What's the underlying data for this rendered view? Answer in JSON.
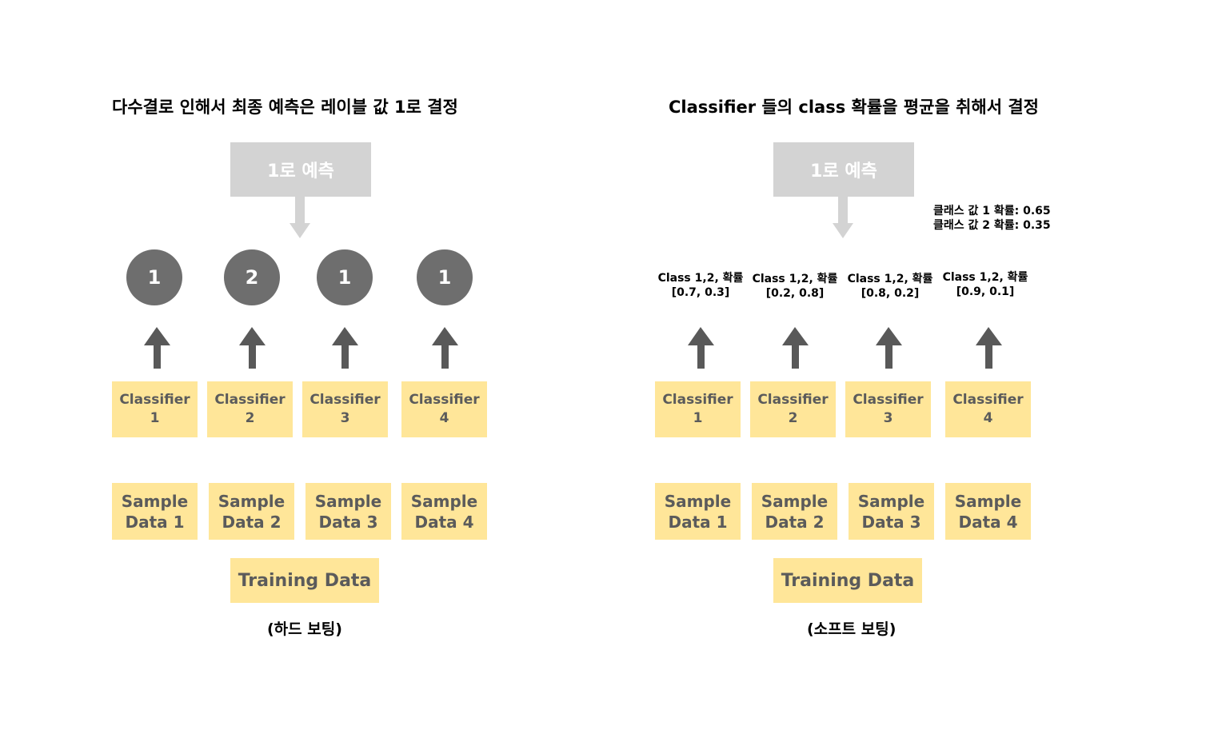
{
  "hard": {
    "title": "다수결로 인해서 최종 예측은 레이블 값 1로 결정",
    "prediction": "1로 예측",
    "votes": [
      "1",
      "2",
      "1",
      "1"
    ],
    "classifiers": [
      {
        "name": "Classifier",
        "num": "1"
      },
      {
        "name": "Classifier",
        "num": "2"
      },
      {
        "name": "Classifier",
        "num": "3"
      },
      {
        "name": "Classifier",
        "num": "4"
      }
    ],
    "samples": [
      {
        "line1": "Sample",
        "line2": "Data 1"
      },
      {
        "line1": "Sample",
        "line2": "Data 2"
      },
      {
        "line1": "Sample",
        "line2": "Data 3"
      },
      {
        "line1": "Sample",
        "line2": "Data 4"
      }
    ],
    "training": "Training Data",
    "caption": "(하드 보팅)"
  },
  "soft": {
    "title": "Classifier 들의 class 확률을 평균을 취해서 결정",
    "prediction": "1로 예측",
    "average": [
      "클래스 값 1 확률: 0.65",
      "클래스 값 2 확률: 0.35"
    ],
    "probs": [
      {
        "label": "Class 1,2, 확률",
        "values": "[0.7, 0.3]"
      },
      {
        "label": "Class 1,2, 확률",
        "values": "[0.2, 0.8]"
      },
      {
        "label": "Class 1,2, 확률",
        "values": "[0.8, 0.2]"
      },
      {
        "label": "Class 1,2, 확률",
        "values": "[0.9, 0.1]"
      }
    ],
    "classifiers": [
      {
        "name": "Classifier",
        "num": "1"
      },
      {
        "name": "Classifier",
        "num": "2"
      },
      {
        "name": "Classifier",
        "num": "3"
      },
      {
        "name": "Classifier",
        "num": "4"
      }
    ],
    "samples": [
      {
        "line1": "Sample",
        "line2": "Data 1"
      },
      {
        "line1": "Sample",
        "line2": "Data 2"
      },
      {
        "line1": "Sample",
        "line2": "Data 3"
      },
      {
        "line1": "Sample",
        "line2": "Data 4"
      }
    ],
    "training": "Training Data",
    "caption": "(소프트 보팅)"
  },
  "colors": {
    "box_fill": "#ffe699",
    "box_text": "#5b5b5b",
    "prediction_fill": "#d3d3d3",
    "vote_circle": "#6e6e6e",
    "arrow_dark": "#595959",
    "arrow_light": "#d3d3d3"
  }
}
